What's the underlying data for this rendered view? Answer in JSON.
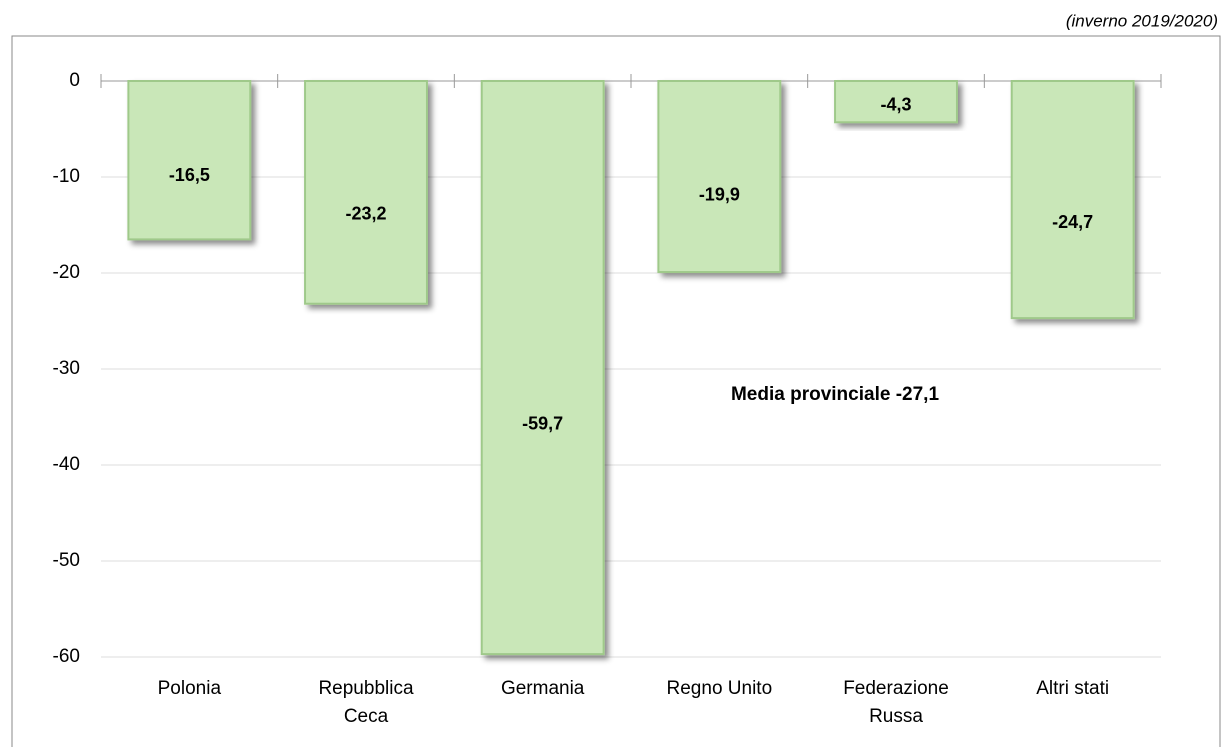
{
  "chart_data": {
    "type": "bar",
    "subtitle": "(inverno 2019/2020)",
    "categories": [
      "Polonia",
      "Repubblica\nCeca",
      "Germania",
      "Regno Unito",
      "Federazione\nRussa",
      "Altri stati"
    ],
    "values": [
      -16.5,
      -23.2,
      -59.7,
      -19.9,
      -4.3,
      -24.7
    ],
    "value_labels": [
      "-16,5",
      "-23,2",
      "-59,7",
      "-19,9",
      "-4,3",
      "-24,7"
    ],
    "color": "#c9e7b8",
    "average": {
      "value": -27.1,
      "label": "Media provinciale -27,1",
      "color": "#8b0a0a"
    },
    "ylim": [
      -60,
      0
    ],
    "yticks": [
      0,
      -10,
      -20,
      -30,
      -40,
      -50,
      -60
    ],
    "grid": true
  }
}
